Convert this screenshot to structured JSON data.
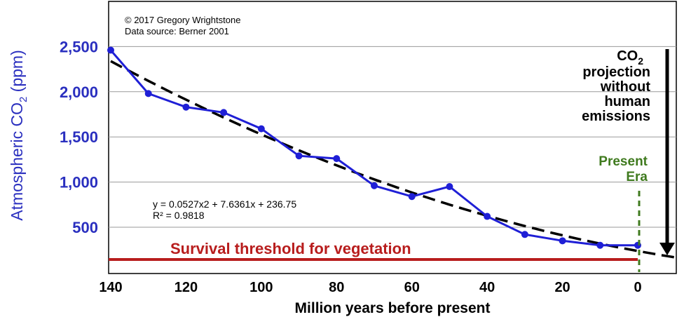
{
  "chart_data": {
    "type": "line",
    "credit": "© 2017 Gregory Wrightstone",
    "source": "Data source: Berner 2001",
    "ylabel_main": "Atmospheric CO",
    "ylabel_sub": "2",
    "ylabel_unit": " (ppm)",
    "xlabel": "Million years before present",
    "x_direction": "reversed",
    "xlim": [
      140,
      -10
    ],
    "ylim": [
      150,
      2650
    ],
    "x_ticks": [
      140,
      120,
      100,
      80,
      60,
      40,
      20,
      0
    ],
    "x_tick_labels": [
      "140",
      "120",
      "100",
      "80",
      "60",
      "40",
      "20",
      "0"
    ],
    "y_ticks": [
      500,
      1000,
      1500,
      2000,
      2500
    ],
    "y_tick_labels": [
      "500",
      "1,000",
      "1,500",
      "2,000",
      "2,500"
    ],
    "grid": "horizontal",
    "series": [
      {
        "color": "#1f1fd6",
        "x": [
          140,
          130,
          120,
          110,
          100,
          90,
          80,
          70,
          60,
          50,
          40,
          30,
          20,
          10,
          0
        ],
        "y": [
          2460,
          1980,
          1830,
          1770,
          1590,
          1290,
          1260,
          960,
          840,
          950,
          620,
          420,
          350,
          300,
          300
        ]
      }
    ],
    "trendline": {
      "style": "dashed",
      "color": "#000000",
      "equation": "y = 0.0527x2 + 7.6361x + 236.75",
      "r2": "R² = 0.9818",
      "coefficients": [
        0.0527,
        7.6361,
        236.75
      ]
    },
    "threshold": {
      "label": "Survival threshold for vegetation",
      "value": 150,
      "color": "#b81d1d"
    },
    "present_era": {
      "label_line1": "Present",
      "label_line2": "Era",
      "x": 0,
      "color": "#3f7a1e"
    },
    "projection": {
      "line1_main": "CO",
      "line1_sub": "2",
      "line2": "projection",
      "line3": "without",
      "line4": "human",
      "line5": "emissions"
    }
  }
}
